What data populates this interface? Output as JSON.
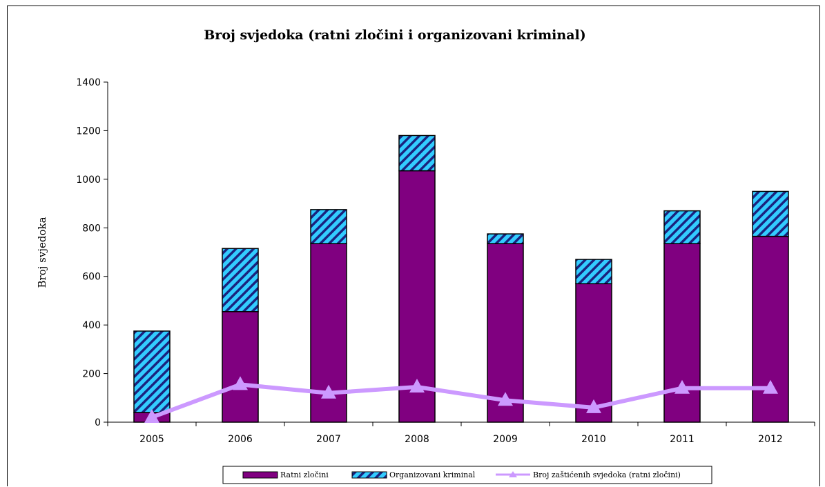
{
  "chart_data": {
    "type": "bar",
    "stacked": true,
    "title": "Broj svjedoka (ratni zločini i organizovani kriminal)",
    "xlabel": "",
    "ylabel": "Broj svjedoka",
    "categories": [
      "2005",
      "2006",
      "2007",
      "2008",
      "2009",
      "2010",
      "2011",
      "2012"
    ],
    "ylim": [
      0,
      1400
    ],
    "yticks": [
      0,
      200,
      400,
      600,
      800,
      1000,
      1200,
      1400
    ],
    "series": [
      {
        "name": "Ratni zločini",
        "kind": "bar",
        "color": "#800080",
        "values": [
          40,
          455,
          735,
          1035,
          735,
          570,
          735,
          765
        ]
      },
      {
        "name": "Organizovani kriminal",
        "kind": "bar-hatched",
        "color": "#33ccff",
        "values": [
          335,
          260,
          140,
          145,
          40,
          100,
          135,
          185
        ]
      },
      {
        "name": "Broj zaštićenih svjedoka (ratni zločini)",
        "kind": "line",
        "color": "#cc99ff",
        "values": [
          20,
          155,
          120,
          145,
          90,
          60,
          140,
          140
        ]
      }
    ],
    "legend_position": "bottom",
    "grid": false
  }
}
